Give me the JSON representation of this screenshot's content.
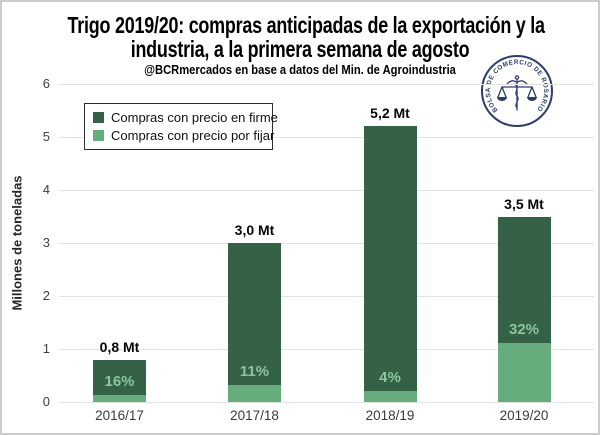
{
  "header": {
    "title_line1": "Trigo 2019/20: compras anticipadas de la exportación y la",
    "title_line2": "industria, a la primera semana de agosto",
    "subtitle": "@BCRmercados en base a datos del Min. de Agroindustria"
  },
  "logo": {
    "ring_text": "BOLSA DE COMERCIO DE ROSARIO",
    "color": "#2e3c6e"
  },
  "chart_data": {
    "type": "bar",
    "stacked": true,
    "title": "Trigo 2019/20: compras anticipadas de la exportación y la industria, a la primera semana de agosto",
    "subtitle": "@BCRmercados en base a datos del Min. de Agroindustria",
    "xlabel": "",
    "ylabel": "Millones de toneladas",
    "ylim": [
      0,
      6
    ],
    "yticks": [
      0,
      1,
      2,
      3,
      4,
      5,
      6
    ],
    "grid": true,
    "legend_position": "top-left",
    "categories": [
      "2016/17",
      "2017/18",
      "2018/19",
      "2019/20"
    ],
    "series": [
      {
        "name": "Compras con precio en firme",
        "color": "#356247",
        "values": [
          0.67,
          2.67,
          4.99,
          2.38
        ]
      },
      {
        "name": "Compras con precio por fijar",
        "color": "#66ac7c",
        "values": [
          0.13,
          0.33,
          0.21,
          1.12
        ]
      }
    ],
    "totals": [
      0.8,
      3.0,
      5.2,
      3.5
    ],
    "total_labels": [
      "0,8 Mt",
      "3,0 Mt",
      "5,2 Mt",
      "3,5 Mt"
    ],
    "por_fijar_pct": [
      16,
      11,
      4,
      32
    ],
    "pct_labels": [
      "16%",
      "11%",
      "4%",
      "32%"
    ],
    "pct_label_color": "#8cc59e",
    "gridline_color": "#e3e3e3"
  }
}
